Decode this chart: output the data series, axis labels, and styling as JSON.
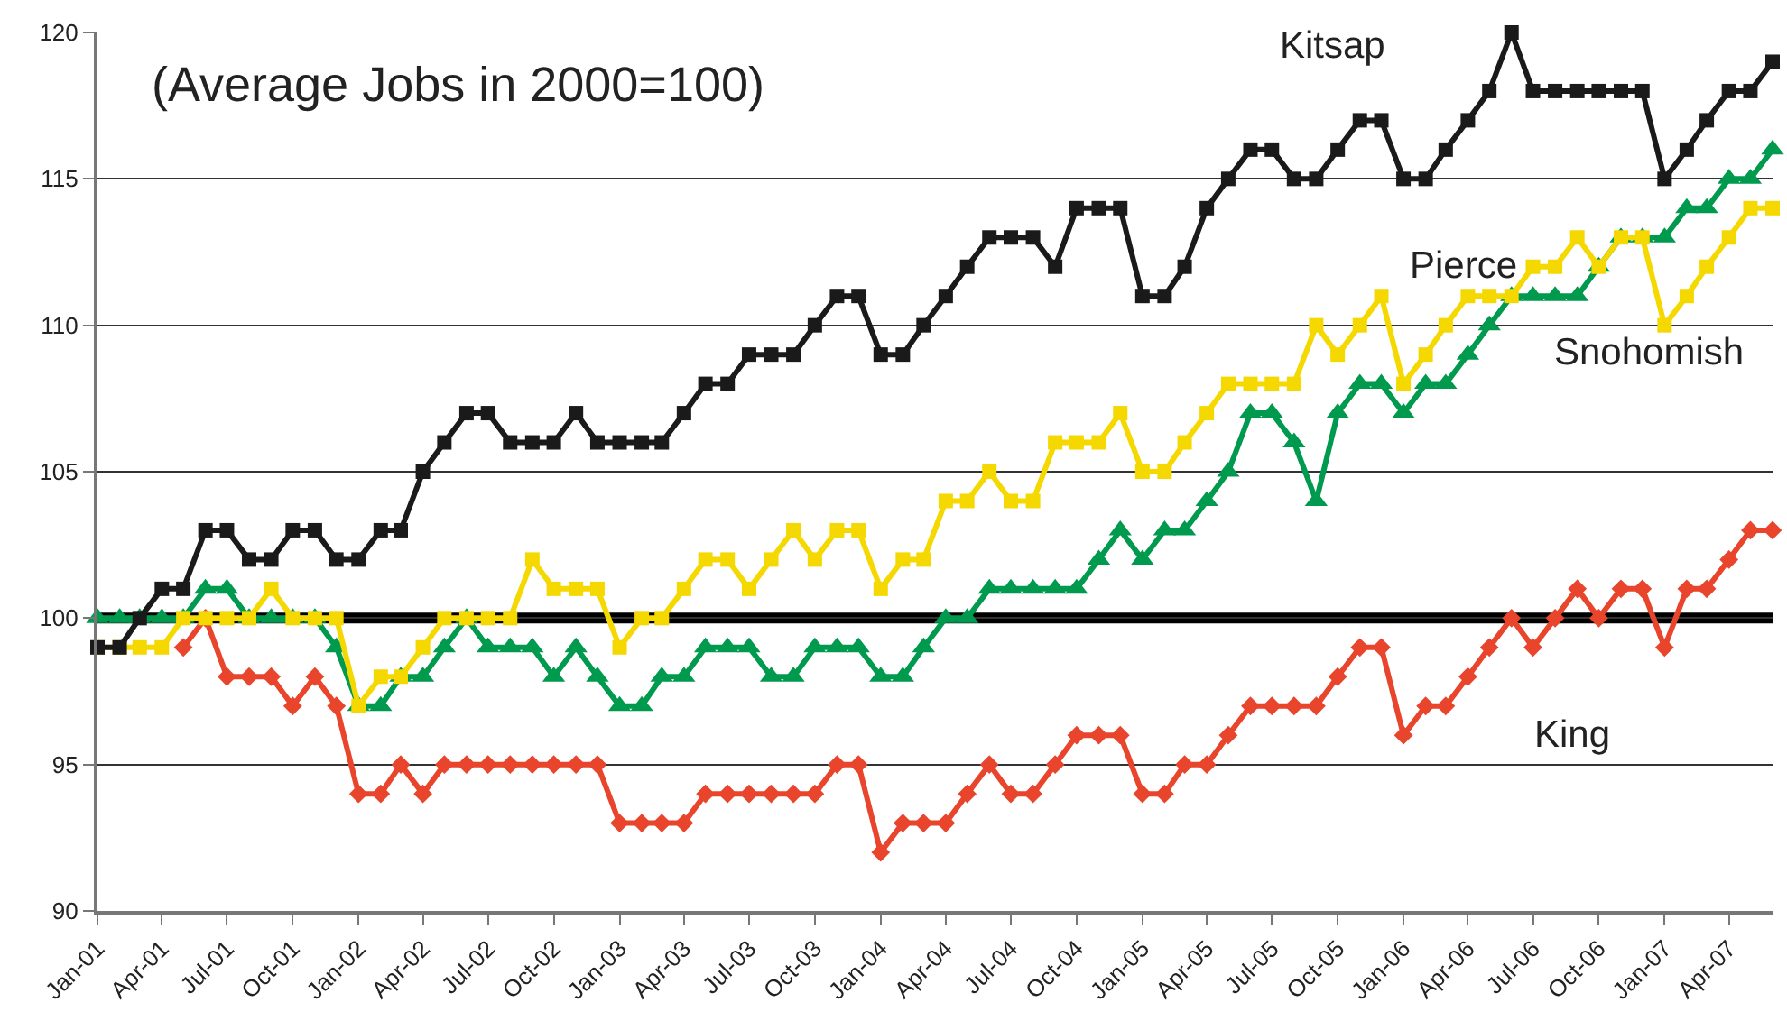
{
  "chart_data": {
    "type": "line",
    "annotations": [
      "(Average Jobs in 2000=100)"
    ],
    "x": [
      "2001-01",
      "2001-02",
      "2001-03",
      "2001-04",
      "2001-05",
      "2001-06",
      "2001-07",
      "2001-08",
      "2001-09",
      "2001-10",
      "2001-11",
      "2001-12",
      "2002-01",
      "2002-02",
      "2002-03",
      "2002-04",
      "2002-05",
      "2002-06",
      "2002-07",
      "2002-08",
      "2002-09",
      "2002-10",
      "2002-11",
      "2002-12",
      "2003-01",
      "2003-02",
      "2003-03",
      "2003-04",
      "2003-05",
      "2003-06",
      "2003-07",
      "2003-08",
      "2003-09",
      "2003-10",
      "2003-11",
      "2003-12",
      "2004-01",
      "2004-02",
      "2004-03",
      "2004-04",
      "2004-05",
      "2004-06",
      "2004-07",
      "2004-08",
      "2004-09",
      "2004-10",
      "2004-11",
      "2004-12",
      "2005-01",
      "2005-02",
      "2005-03",
      "2005-04",
      "2005-05",
      "2005-06",
      "2005-07",
      "2005-08",
      "2005-09",
      "2005-10",
      "2005-11",
      "2005-12",
      "2006-01",
      "2006-02",
      "2006-03",
      "2006-04",
      "2006-05",
      "2006-06",
      "2006-07",
      "2006-08",
      "2006-09",
      "2006-10",
      "2006-11",
      "2006-12",
      "2007-01",
      "2007-02",
      "2007-03",
      "2007-04",
      "2007-05",
      "2007-06"
    ],
    "series": [
      {
        "name": "King",
        "color": "#e8452c",
        "marker": "diamond",
        "values": [
          null,
          null,
          null,
          null,
          99,
          100,
          98,
          98,
          98,
          97,
          98,
          97,
          94,
          94,
          95,
          94,
          95,
          95,
          95,
          95,
          95,
          95,
          95,
          95,
          93,
          93,
          93,
          93,
          94,
          94,
          94,
          94,
          94,
          94,
          95,
          95,
          92,
          93,
          93,
          93,
          94,
          95,
          94,
          94,
          95,
          96,
          96,
          96,
          94,
          94,
          95,
          95,
          96,
          97,
          97,
          97,
          97,
          98,
          99,
          99,
          96,
          97,
          97,
          98,
          99,
          100,
          99,
          100,
          101,
          100,
          101,
          101,
          99,
          101,
          101,
          102,
          103,
          103
        ]
      },
      {
        "name": "Snohomish",
        "color": "#009a4e",
        "marker": "triangle",
        "values": [
          100,
          100,
          100,
          100,
          100,
          101,
          101,
          100,
          100,
          100,
          100,
          99,
          97,
          97,
          98,
          98,
          99,
          100,
          99,
          99,
          99,
          98,
          99,
          98,
          97,
          97,
          98,
          98,
          99,
          99,
          99,
          98,
          98,
          99,
          99,
          99,
          98,
          98,
          99,
          100,
          100,
          101,
          101,
          101,
          101,
          101,
          102,
          103,
          102,
          103,
          103,
          104,
          105,
          107,
          107,
          106,
          104,
          107,
          108,
          108,
          107,
          108,
          108,
          109,
          110,
          111,
          111,
          111,
          111,
          112,
          113,
          113,
          113,
          114,
          114,
          115,
          115,
          116
        ]
      },
      {
        "name": "Pierce",
        "color": "#f5d800",
        "marker": "square",
        "values": [
          99,
          99,
          99,
          99,
          100,
          100,
          100,
          100,
          101,
          100,
          100,
          100,
          97,
          98,
          98,
          99,
          100,
          100,
          100,
          100,
          102,
          101,
          101,
          101,
          99,
          100,
          100,
          101,
          102,
          102,
          101,
          102,
          103,
          102,
          103,
          103,
          101,
          102,
          102,
          104,
          104,
          105,
          104,
          104,
          106,
          106,
          106,
          107,
          105,
          105,
          106,
          107,
          108,
          108,
          108,
          108,
          110,
          109,
          110,
          111,
          108,
          109,
          110,
          111,
          111,
          111,
          112,
          112,
          113,
          112,
          113,
          113,
          110,
          111,
          112,
          113,
          114,
          114
        ]
      },
      {
        "name": "Kitsap",
        "color": "#1a1a1a",
        "marker": "square",
        "values": [
          99,
          99,
          100,
          101,
          101,
          103,
          103,
          102,
          102,
          103,
          103,
          102,
          102,
          103,
          103,
          105,
          106,
          107,
          107,
          106,
          106,
          106,
          107,
          106,
          106,
          106,
          106,
          107,
          108,
          108,
          109,
          109,
          109,
          110,
          111,
          111,
          109,
          109,
          110,
          111,
          112,
          113,
          113,
          113,
          112,
          114,
          114,
          114,
          111,
          111,
          112,
          114,
          115,
          116,
          116,
          115,
          115,
          116,
          117,
          117,
          115,
          115,
          116,
          117,
          118,
          120,
          118,
          118,
          118,
          118,
          118,
          118,
          115,
          116,
          117,
          118,
          118,
          119
        ]
      }
    ],
    "xlim": [
      "2001-01",
      "2007-06"
    ],
    "xticks": [
      {
        "value": "2001-01",
        "label": "Jan-01"
      },
      {
        "value": "2001-04",
        "label": "Apr-01"
      },
      {
        "value": "2001-07",
        "label": "Jul-01"
      },
      {
        "value": "2001-10",
        "label": "Oct-01"
      },
      {
        "value": "2002-01",
        "label": "Jan-02"
      },
      {
        "value": "2002-04",
        "label": "Apr-02"
      },
      {
        "value": "2002-07",
        "label": "Jul-02"
      },
      {
        "value": "2002-10",
        "label": "Oct-02"
      },
      {
        "value": "2003-01",
        "label": "Jan-03"
      },
      {
        "value": "2003-04",
        "label": "Apr-03"
      },
      {
        "value": "2003-07",
        "label": "Jul-03"
      },
      {
        "value": "2003-10",
        "label": "Oct-03"
      },
      {
        "value": "2004-01",
        "label": "Jan-04"
      },
      {
        "value": "2004-04",
        "label": "Apr-04"
      },
      {
        "value": "2004-07",
        "label": "Jul-04"
      },
      {
        "value": "2004-10",
        "label": "Oct-04"
      },
      {
        "value": "2005-01",
        "label": "Jan-05"
      },
      {
        "value": "2005-04",
        "label": "Apr-05"
      },
      {
        "value": "2005-07",
        "label": "Jul-05"
      },
      {
        "value": "2005-10",
        "label": "Oct-05"
      },
      {
        "value": "2006-01",
        "label": "Jan-06"
      },
      {
        "value": "2006-04",
        "label": "Apr-06"
      },
      {
        "value": "2006-07",
        "label": "Jul-06"
      },
      {
        "value": "2006-10",
        "label": "Oct-06"
      },
      {
        "value": "2007-01",
        "label": "Jan-07"
      },
      {
        "value": "2007-04",
        "label": "Apr-07"
      }
    ],
    "ylim": [
      90,
      120
    ],
    "yticks": [
      90,
      95,
      100,
      105,
      110,
      115,
      120
    ],
    "ref_lines": [
      {
        "axis": "y",
        "value": 100,
        "color": "#000000"
      }
    ],
    "grid": "y",
    "legend": false,
    "line_style": "solid"
  }
}
